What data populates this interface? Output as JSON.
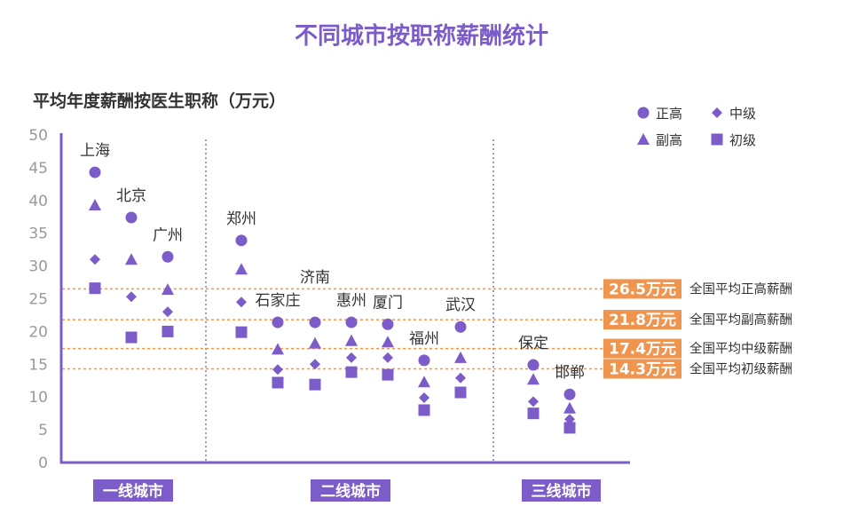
{
  "chart_data": {
    "type": "scatter",
    "title": "不同城市按职称薪酬统计",
    "ylabel": "平均年度薪酬按医生职称（万元）",
    "ylim": [
      0,
      50
    ],
    "yticks": [
      0,
      5,
      10,
      15,
      20,
      25,
      30,
      35,
      40,
      45,
      50
    ],
    "grid": false,
    "legend_position": "top-right",
    "colors": {
      "points": "#7b5cc8",
      "reference": "#f0954f",
      "group_box": "#7b5cc8"
    },
    "categories": [
      "上海",
      "北京",
      "广州",
      "郑州",
      "石家庄",
      "济南",
      "惠州",
      "厦门",
      "福州",
      "武汉",
      "保定",
      "邯郸"
    ],
    "groups": [
      {
        "label": "一线城市",
        "cities": [
          "上海",
          "北京",
          "广州"
        ]
      },
      {
        "label": "二线城市",
        "cities": [
          "郑州",
          "石家庄",
          "济南",
          "惠州",
          "厦门",
          "福州",
          "武汉"
        ]
      },
      {
        "label": "三线城市",
        "cities": [
          "保定",
          "邯郸"
        ]
      }
    ],
    "series": [
      {
        "name": "正高",
        "marker": "circle",
        "values": [
          44.3,
          37.4,
          31.4,
          33.9,
          21.4,
          21.4,
          21.4,
          21.1,
          15.6,
          20.7,
          14.9,
          10.4
        ]
      },
      {
        "name": "副高",
        "marker": "triangle",
        "values": [
          39.3,
          31.0,
          26.4,
          29.5,
          17.3,
          18.2,
          18.6,
          18.4,
          12.3,
          16.0,
          12.7,
          8.3
        ]
      },
      {
        "name": "中级",
        "marker": "diamond",
        "values": [
          31.0,
          25.3,
          23.0,
          24.5,
          14.2,
          15.0,
          16.0,
          16.0,
          9.9,
          12.9,
          9.3,
          6.6
        ]
      },
      {
        "name": "初级",
        "marker": "square",
        "values": [
          26.6,
          19.1,
          20.0,
          19.9,
          12.2,
          11.9,
          13.8,
          13.4,
          8.0,
          10.7,
          7.5,
          5.3
        ]
      }
    ],
    "reference_lines": [
      {
        "value": 26.5,
        "value_label": "26.5万元",
        "label": "全国平均正高薪酬"
      },
      {
        "value": 21.8,
        "value_label": "21.8万元",
        "label": "全国平均副高薪酬"
      },
      {
        "value": 17.4,
        "value_label": "17.4万元",
        "label": "全国平均中级薪酬"
      },
      {
        "value": 14.3,
        "value_label": "14.3万元",
        "label": "全国平均初级薪酬"
      }
    ]
  }
}
